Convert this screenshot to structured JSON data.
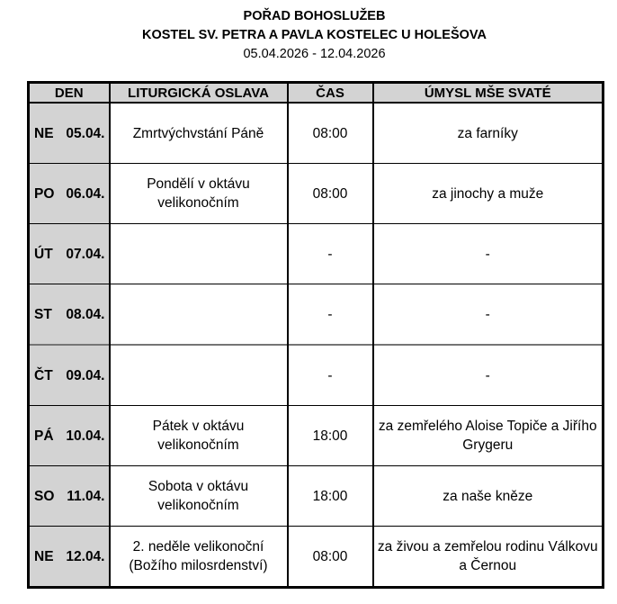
{
  "header": {
    "title": "POŘAD BOHOSLUŽEB",
    "church": "KOSTEL SV. PETRA A PAVLA KOSTELEC U HOLEŠOVA",
    "date_range": "05.04.2026 - 12.04.2026"
  },
  "table": {
    "columns": [
      "DEN",
      "LITURGICKÁ OSLAVA",
      "ČAS",
      "ÚMYSL MŠE SVATÉ"
    ],
    "rows": [
      {
        "day": "NE",
        "date": "05.04.",
        "celebration": "Zmrtvýchvstání Páně",
        "time": "08:00",
        "intention": "za farníky"
      },
      {
        "day": "PO",
        "date": "06.04.",
        "celebration": "Pondělí v oktávu velikonočním",
        "time": "08:00",
        "intention": "za jinochy a muže"
      },
      {
        "day": "ÚT",
        "date": "07.04.",
        "celebration": "",
        "time": "-",
        "intention": "-"
      },
      {
        "day": "ST",
        "date": "08.04.",
        "celebration": "",
        "time": "-",
        "intention": "-"
      },
      {
        "day": "ČT",
        "date": "09.04.",
        "celebration": "",
        "time": "-",
        "intention": "-"
      },
      {
        "day": "PÁ",
        "date": "10.04.",
        "celebration": "Pátek v oktávu velikonočním",
        "time": "18:00",
        "intention": "za zemřelého Aloise Topiče a Jiřího Grygeru"
      },
      {
        "day": "SO",
        "date": "11.04.",
        "celebration": "Sobota v oktávu velikonočním",
        "time": "18:00",
        "intention": "za naše kněze"
      },
      {
        "day": "NE",
        "date": "12.04.",
        "celebration": "2. neděle velikonoční (Božího milosrdenství)",
        "time": "08:00",
        "intention": "za živou a zemřelou rodinu Válkovu a Černou"
      }
    ]
  },
  "colors": {
    "cell_gray": "#d3d3d3",
    "border": "#000000",
    "background": "#ffffff",
    "text": "#000000"
  }
}
